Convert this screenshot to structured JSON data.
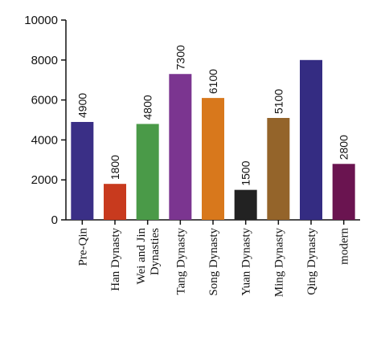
{
  "chart_data": {
    "type": "bar",
    "categories": [
      "Pre-Qin",
      "Han Dynasty",
      "Wei and Jin Dynasties",
      "Tang Dynasty",
      "Song Dynasty",
      "Yuan Dynasty",
      "Ming Dynasty",
      "Qing Dynasty",
      "modern"
    ],
    "values": [
      4900,
      1800,
      4800,
      7300,
      6100,
      1500,
      5100,
      8000,
      2800
    ],
    "value_labels": [
      "4900",
      "1800",
      "4800",
      "7300",
      "6100",
      "1500",
      "5100",
      null,
      "2800"
    ],
    "colors": [
      "#3a2f86",
      "#c83a1e",
      "#4a9a48",
      "#7b3590",
      "#d8781c",
      "#222222",
      "#94642a",
      "#342c82",
      "#6a1450"
    ],
    "ylim": [
      0,
      10000
    ],
    "yticks": [
      0,
      2000,
      4000,
      6000,
      8000,
      10000
    ],
    "grid": false
  }
}
